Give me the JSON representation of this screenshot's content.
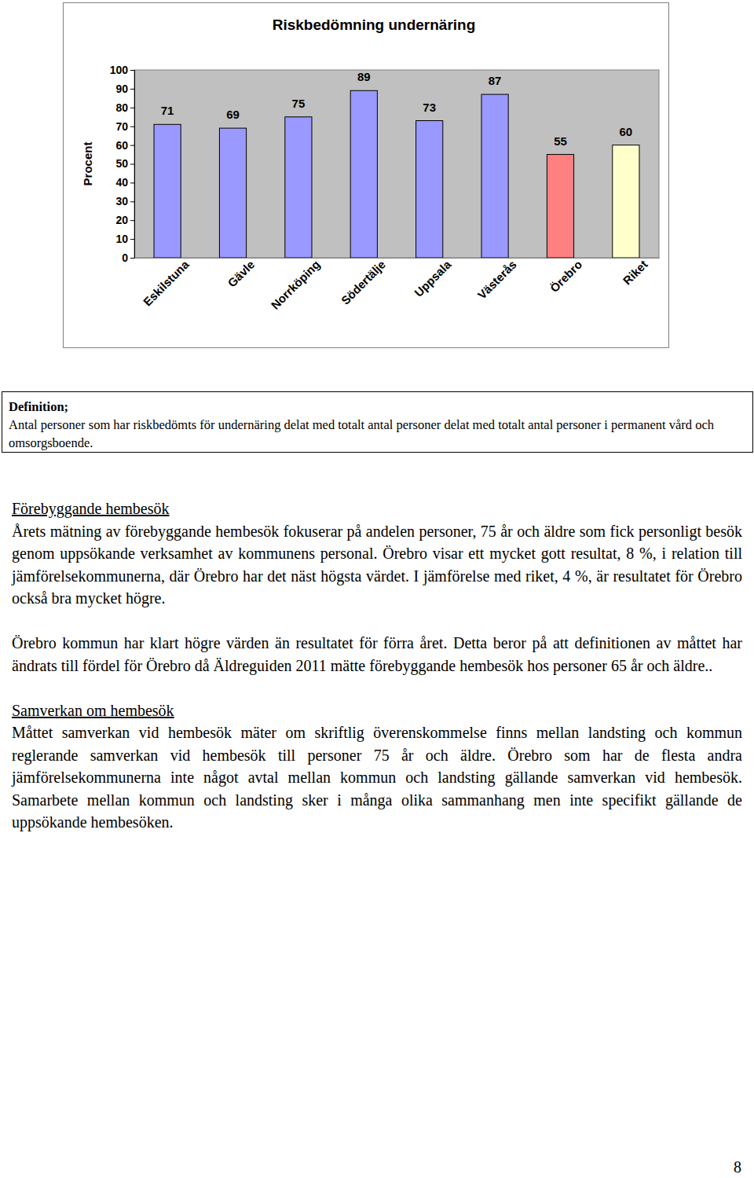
{
  "chart_data": {
    "type": "bar",
    "title": "Riskbedömning undernäring",
    "y_label": "Procent",
    "categories": [
      "Eskilstuna",
      "Gävle",
      "Norrköping",
      "Södertälje",
      "Uppsala",
      "Västerås",
      "Örebro",
      "Riket"
    ],
    "values": [
      71,
      69,
      75,
      89,
      73,
      87,
      55,
      60
    ],
    "colors": [
      "#9999ff",
      "#9999ff",
      "#9999ff",
      "#9999ff",
      "#9999ff",
      "#9999ff",
      "#ff8080",
      "#ffffcc"
    ],
    "ylim": [
      0,
      100
    ],
    "yticks": [
      0,
      10,
      20,
      30,
      40,
      50,
      60,
      70,
      80,
      90,
      100
    ],
    "grid": false,
    "data_labels": true
  },
  "document": {
    "definition": {
      "heading": "Definition;",
      "text": "Antal personer som har riskbedömts för undernäring delat med totalt antal personer delat med totalt antal personer i permanent vård och omsorgsboende."
    },
    "sections": [
      {
        "heading": "Förebyggande hembesök",
        "paragraphs": [
          "Årets mätning av förebyggande hembesök fokuserar på andelen personer, 75 år och äldre som fick personligt besök genom uppsökande verksamhet av kommunens personal. Örebro visar ett mycket gott resultat, 8 %, i relation till jämförelsekommunerna, där Örebro har det näst högsta värdet. I jämförelse med riket, 4 %, är resultatet för Örebro också bra mycket högre.",
          "Örebro kommun har klart högre värden än resultatet för förra året. Detta beror på att definitionen av måttet har ändrats till fördel för Örebro då Äldreguiden 2011 mätte förebyggande hembesök hos personer 65 år och äldre.."
        ]
      },
      {
        "heading": "Samverkan om hembesök",
        "paragraphs": [
          "Måttet samverkan vid hembesök mäter om skriftlig överenskommelse finns mellan landsting och kommun reglerande samverkan vid hembesök till personer 75 år och äldre. Örebro som har de flesta andra jämförelsekommunerna inte något avtal mellan kommun och landsting gällande samverkan vid hembesök. Samarbete mellan kommun och landsting sker i många olika sammanhang men inte specifikt gällande de uppsökande hembesöken."
        ]
      }
    ],
    "page_number": "8"
  }
}
